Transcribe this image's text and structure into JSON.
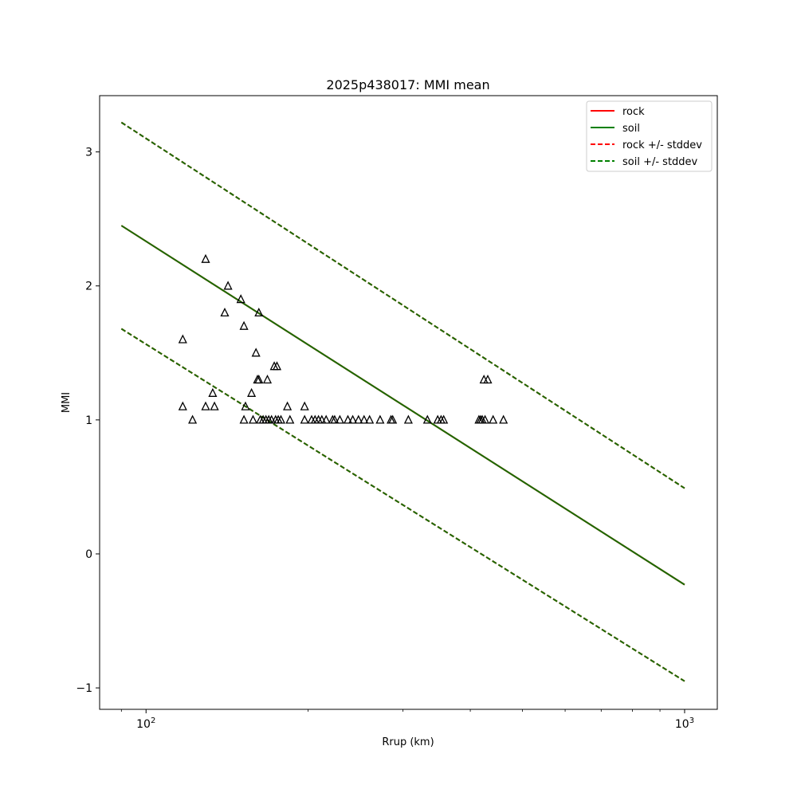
{
  "chart_data": {
    "type": "scatter",
    "title": "2025p438017: MMI mean",
    "xlabel": "Rrup (km)",
    "ylabel": "MMI",
    "xscale": "log",
    "xlim": [
      82,
      1150
    ],
    "ylim": [
      -1.16,
      3.42
    ],
    "xticks": [
      {
        "value": 100,
        "base": "10",
        "exp": "2"
      },
      {
        "value": 1000,
        "base": "10",
        "exp": "3"
      }
    ],
    "yticks": [
      -1,
      0,
      1,
      2,
      3
    ],
    "ytick_labels": [
      "−1",
      "0",
      "1",
      "2",
      "3"
    ],
    "grid": false,
    "legend_position": "top-right",
    "legend": [
      {
        "label": "rock",
        "color": "#ff0000",
        "style": "solid"
      },
      {
        "label": "soil",
        "color": "#008000",
        "style": "solid"
      },
      {
        "label": "rock +/- stddev",
        "color": "#ff0000",
        "style": "dashed"
      },
      {
        "label": "soil +/- stddev",
        "color": "#008000",
        "style": "dashed"
      }
    ],
    "lines": [
      {
        "name": "rock",
        "color": "#ff0000",
        "style": "solid",
        "x": [
          90,
          1000
        ],
        "y": [
          2.45,
          -0.23
        ]
      },
      {
        "name": "rock +/- stddev",
        "color": "#ff0000",
        "style": "dashed",
        "x": [
          90,
          1000
        ],
        "y": [
          3.22,
          0.49
        ]
      },
      {
        "name": "rock +/- stddev",
        "color": "#ff0000",
        "style": "dashed",
        "x": [
          90,
          1000
        ],
        "y": [
          1.68,
          -0.95
        ]
      },
      {
        "name": "soil",
        "color": "#1a6b00",
        "style": "solid",
        "x": [
          90,
          1000
        ],
        "y": [
          2.45,
          -0.23
        ]
      },
      {
        "name": "soil +/- stddev",
        "color": "#1a6b00",
        "style": "dashed",
        "x": [
          90,
          1000
        ],
        "y": [
          3.22,
          0.49
        ]
      },
      {
        "name": "soil +/- stddev",
        "color": "#1a6b00",
        "style": "dashed",
        "x": [
          90,
          1000
        ],
        "y": [
          1.68,
          -0.95
        ]
      }
    ],
    "points": [
      {
        "x": 117,
        "y": 1.6
      },
      {
        "x": 117,
        "y": 1.1
      },
      {
        "x": 122,
        "y": 1.0
      },
      {
        "x": 129,
        "y": 2.2
      },
      {
        "x": 129,
        "y": 1.1
      },
      {
        "x": 133,
        "y": 1.2
      },
      {
        "x": 134,
        "y": 1.1
      },
      {
        "x": 140,
        "y": 1.8
      },
      {
        "x": 142,
        "y": 2.0
      },
      {
        "x": 150,
        "y": 1.9
      },
      {
        "x": 152,
        "y": 1.7
      },
      {
        "x": 153,
        "y": 1.1
      },
      {
        "x": 152,
        "y": 1.0
      },
      {
        "x": 157,
        "y": 1.2
      },
      {
        "x": 158,
        "y": 1.0
      },
      {
        "x": 160,
        "y": 1.5
      },
      {
        "x": 161,
        "y": 1.3
      },
      {
        "x": 162,
        "y": 1.3
      },
      {
        "x": 162,
        "y": 1.8
      },
      {
        "x": 163,
        "y": 1.0
      },
      {
        "x": 165,
        "y": 1.0
      },
      {
        "x": 167,
        "y": 1.0
      },
      {
        "x": 168,
        "y": 1.3
      },
      {
        "x": 169,
        "y": 1.0
      },
      {
        "x": 171,
        "y": 1.0
      },
      {
        "x": 173,
        "y": 1.4
      },
      {
        "x": 174,
        "y": 1.0
      },
      {
        "x": 175,
        "y": 1.4
      },
      {
        "x": 176,
        "y": 1.0
      },
      {
        "x": 178,
        "y": 1.0
      },
      {
        "x": 183,
        "y": 1.1
      },
      {
        "x": 185,
        "y": 1.0
      },
      {
        "x": 197,
        "y": 1.1
      },
      {
        "x": 197,
        "y": 1.0
      },
      {
        "x": 203,
        "y": 1.0
      },
      {
        "x": 206,
        "y": 1.0
      },
      {
        "x": 209,
        "y": 1.0
      },
      {
        "x": 212,
        "y": 1.0
      },
      {
        "x": 216,
        "y": 1.0
      },
      {
        "x": 222,
        "y": 1.0
      },
      {
        "x": 224,
        "y": 1.0
      },
      {
        "x": 229,
        "y": 1.0
      },
      {
        "x": 237,
        "y": 1.0
      },
      {
        "x": 242,
        "y": 1.0
      },
      {
        "x": 248,
        "y": 1.0
      },
      {
        "x": 254,
        "y": 1.0
      },
      {
        "x": 260,
        "y": 1.0
      },
      {
        "x": 272,
        "y": 1.0
      },
      {
        "x": 285,
        "y": 1.0
      },
      {
        "x": 287,
        "y": 1.0
      },
      {
        "x": 307,
        "y": 1.0
      },
      {
        "x": 333,
        "y": 1.0
      },
      {
        "x": 348,
        "y": 1.0
      },
      {
        "x": 353,
        "y": 1.0
      },
      {
        "x": 357,
        "y": 1.0
      },
      {
        "x": 415,
        "y": 1.0
      },
      {
        "x": 418,
        "y": 1.0
      },
      {
        "x": 421,
        "y": 1.0
      },
      {
        "x": 424,
        "y": 1.3
      },
      {
        "x": 426,
        "y": 1.0
      },
      {
        "x": 431,
        "y": 1.3
      },
      {
        "x": 441,
        "y": 1.0
      },
      {
        "x": 461,
        "y": 1.0
      }
    ]
  }
}
